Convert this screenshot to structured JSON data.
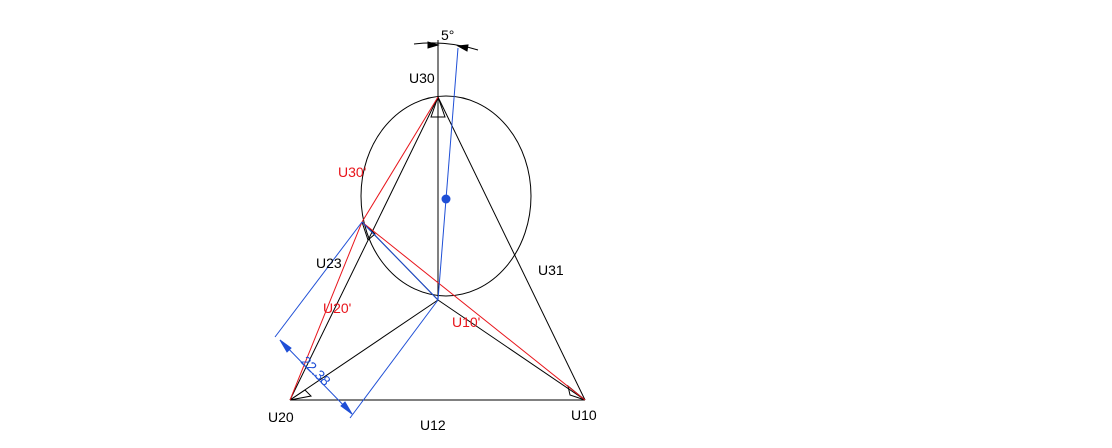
{
  "labels": {
    "u30": "U30",
    "u30_prime": "U30'",
    "u23": "U23",
    "u31": "U31",
    "u20_prime": "U20'",
    "u10_prime": "U10'",
    "u20": "U20",
    "u10": "U10",
    "u12": "U12",
    "angle": "5°",
    "dimension": "22.38"
  },
  "colors": {
    "black": "#000000",
    "red": "#e8141b",
    "blue": "#1f4fd6"
  }
}
